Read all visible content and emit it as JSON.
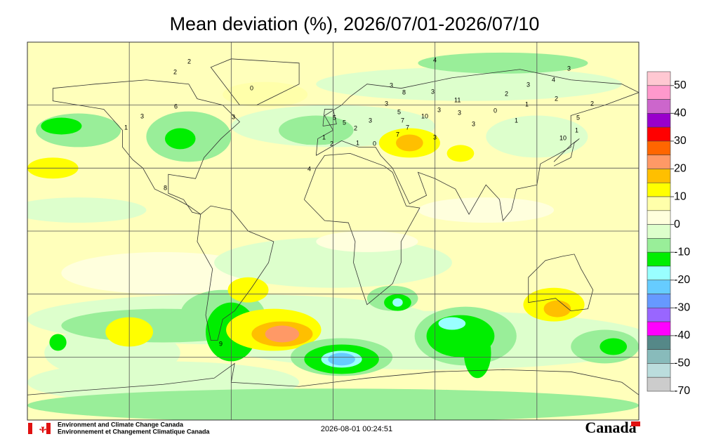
{
  "title": "Mean deviation (%), 2026/07/01-2026/07/10",
  "colorbar": {
    "ticks": [
      50,
      40,
      30,
      20,
      10,
      0,
      -10,
      -20,
      -30,
      -40,
      -50,
      -70
    ],
    "colors": [
      "#ffc8d2",
      "#ff99cc",
      "#cc66cc",
      "#9900cc",
      "#ff0000",
      "#ff6600",
      "#ff9966",
      "#ffbf00",
      "#ffff00",
      "#ffffaa",
      "#ffffdd",
      "#ddffcc",
      "#99ee99",
      "#00ee00",
      "#99ffff",
      "#66ccff",
      "#6699ff",
      "#9966ff",
      "#ff00ff",
      "#558888",
      "#88bbbb",
      "#bbdddd",
      "#cccccc"
    ]
  },
  "stations": [
    2,
    2,
    0,
    6,
    3,
    1,
    3,
    8,
    4,
    4,
    3,
    8,
    3,
    11,
    2,
    3,
    2,
    3,
    4,
    1,
    2,
    5,
    1,
    10,
    10,
    3,
    3,
    0,
    3,
    1,
    5,
    7,
    7,
    7,
    0,
    1,
    1,
    2,
    2,
    5,
    5,
    3,
    3,
    9,
    3
  ],
  "footer": {
    "agency_en": "Environment and Climate Change Canada",
    "agency_fr": "Environnement et Changement Climatique Canada",
    "timestamp": "2026-08-01 00:24:51",
    "wordmark": "Canada"
  }
}
